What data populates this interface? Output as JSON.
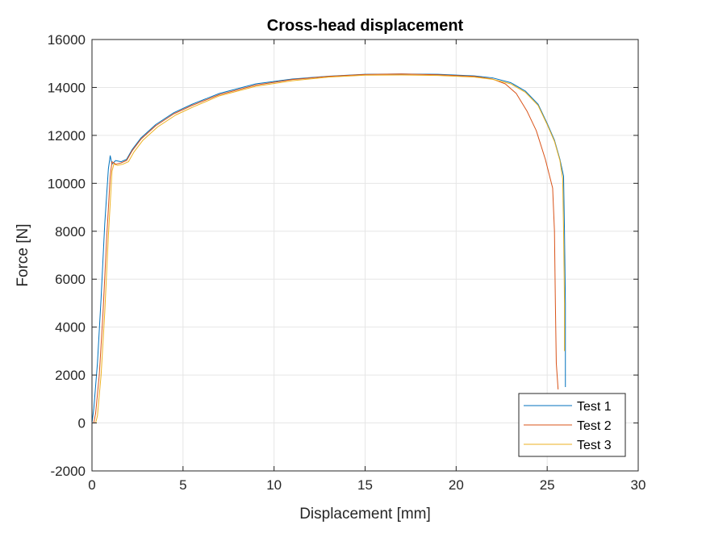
{
  "chart_data": {
    "type": "line",
    "title": "Cross-head displacement",
    "xlabel": "Displacement [mm]",
    "ylabel": "Force [N]",
    "xlim": [
      0,
      30
    ],
    "ylim": [
      -2000,
      16000
    ],
    "xticks": [
      0,
      5,
      10,
      15,
      20,
      25,
      30
    ],
    "yticks": [
      -2000,
      0,
      2000,
      4000,
      6000,
      8000,
      10000,
      12000,
      14000,
      16000
    ],
    "grid": true,
    "legend_position": "bottom-right",
    "series": [
      {
        "name": "Test 1",
        "color": "#0072BD",
        "points": [
          [
            0.0,
            0
          ],
          [
            0.1,
            600
          ],
          [
            0.3,
            2500
          ],
          [
            0.5,
            5200
          ],
          [
            0.7,
            8300
          ],
          [
            0.9,
            10600
          ],
          [
            1.0,
            11150
          ],
          [
            1.1,
            10800
          ],
          [
            1.3,
            10950
          ],
          [
            1.6,
            10900
          ],
          [
            1.9,
            11000
          ],
          [
            2.2,
            11400
          ],
          [
            2.7,
            11900
          ],
          [
            3.5,
            12450
          ],
          [
            4.5,
            12950
          ],
          [
            5.5,
            13300
          ],
          [
            7,
            13750
          ],
          [
            9,
            14150
          ],
          [
            11,
            14350
          ],
          [
            13,
            14470
          ],
          [
            15,
            14550
          ],
          [
            17,
            14560
          ],
          [
            19,
            14550
          ],
          [
            21,
            14480
          ],
          [
            22,
            14400
          ],
          [
            23,
            14200
          ],
          [
            23.8,
            13850
          ],
          [
            24.5,
            13300
          ],
          [
            25.0,
            12500
          ],
          [
            25.4,
            11800
          ],
          [
            25.7,
            11000
          ],
          [
            25.9,
            10300
          ],
          [
            25.95,
            8000
          ],
          [
            26.0,
            5000
          ],
          [
            26.0,
            1500
          ]
        ]
      },
      {
        "name": "Test 2",
        "color": "#D95319",
        "points": [
          [
            0.1,
            0
          ],
          [
            0.2,
            400
          ],
          [
            0.4,
            2000
          ],
          [
            0.6,
            4500
          ],
          [
            0.8,
            7600
          ],
          [
            1.0,
            10300
          ],
          [
            1.1,
            10900
          ],
          [
            1.3,
            10800
          ],
          [
            1.6,
            10850
          ],
          [
            1.9,
            10950
          ],
          [
            2.2,
            11350
          ],
          [
            2.7,
            11850
          ],
          [
            3.5,
            12400
          ],
          [
            4.5,
            12900
          ],
          [
            5.5,
            13250
          ],
          [
            7,
            13700
          ],
          [
            9,
            14100
          ],
          [
            11,
            14330
          ],
          [
            13,
            14460
          ],
          [
            15,
            14540
          ],
          [
            17,
            14560
          ],
          [
            19,
            14530
          ],
          [
            21,
            14460
          ],
          [
            22,
            14350
          ],
          [
            22.7,
            14150
          ],
          [
            23.3,
            13750
          ],
          [
            23.9,
            13000
          ],
          [
            24.4,
            12200
          ],
          [
            24.9,
            11000
          ],
          [
            25.3,
            9800
          ],
          [
            25.4,
            8000
          ],
          [
            25.45,
            5000
          ],
          [
            25.5,
            2500
          ],
          [
            25.6,
            1400
          ]
        ]
      },
      {
        "name": "Test 3",
        "color": "#EDB120",
        "points": [
          [
            0.2,
            0
          ],
          [
            0.3,
            300
          ],
          [
            0.5,
            2000
          ],
          [
            0.7,
            4600
          ],
          [
            0.9,
            7800
          ],
          [
            1.1,
            10500
          ],
          [
            1.2,
            10800
          ],
          [
            1.4,
            10750
          ],
          [
            1.7,
            10800
          ],
          [
            2.0,
            10900
          ],
          [
            2.3,
            11300
          ],
          [
            2.8,
            11800
          ],
          [
            3.6,
            12350
          ],
          [
            4.6,
            12850
          ],
          [
            5.6,
            13200
          ],
          [
            7,
            13650
          ],
          [
            9,
            14050
          ],
          [
            11,
            14280
          ],
          [
            13,
            14430
          ],
          [
            15,
            14510
          ],
          [
            17,
            14520
          ],
          [
            19,
            14500
          ],
          [
            21,
            14430
          ],
          [
            22,
            14340
          ],
          [
            23,
            14150
          ],
          [
            23.8,
            13800
          ],
          [
            24.5,
            13250
          ],
          [
            25.0,
            12450
          ],
          [
            25.4,
            11750
          ],
          [
            25.7,
            10950
          ],
          [
            25.85,
            10200
          ],
          [
            25.9,
            8000
          ],
          [
            25.95,
            5000
          ],
          [
            25.95,
            3000
          ]
        ]
      }
    ]
  }
}
